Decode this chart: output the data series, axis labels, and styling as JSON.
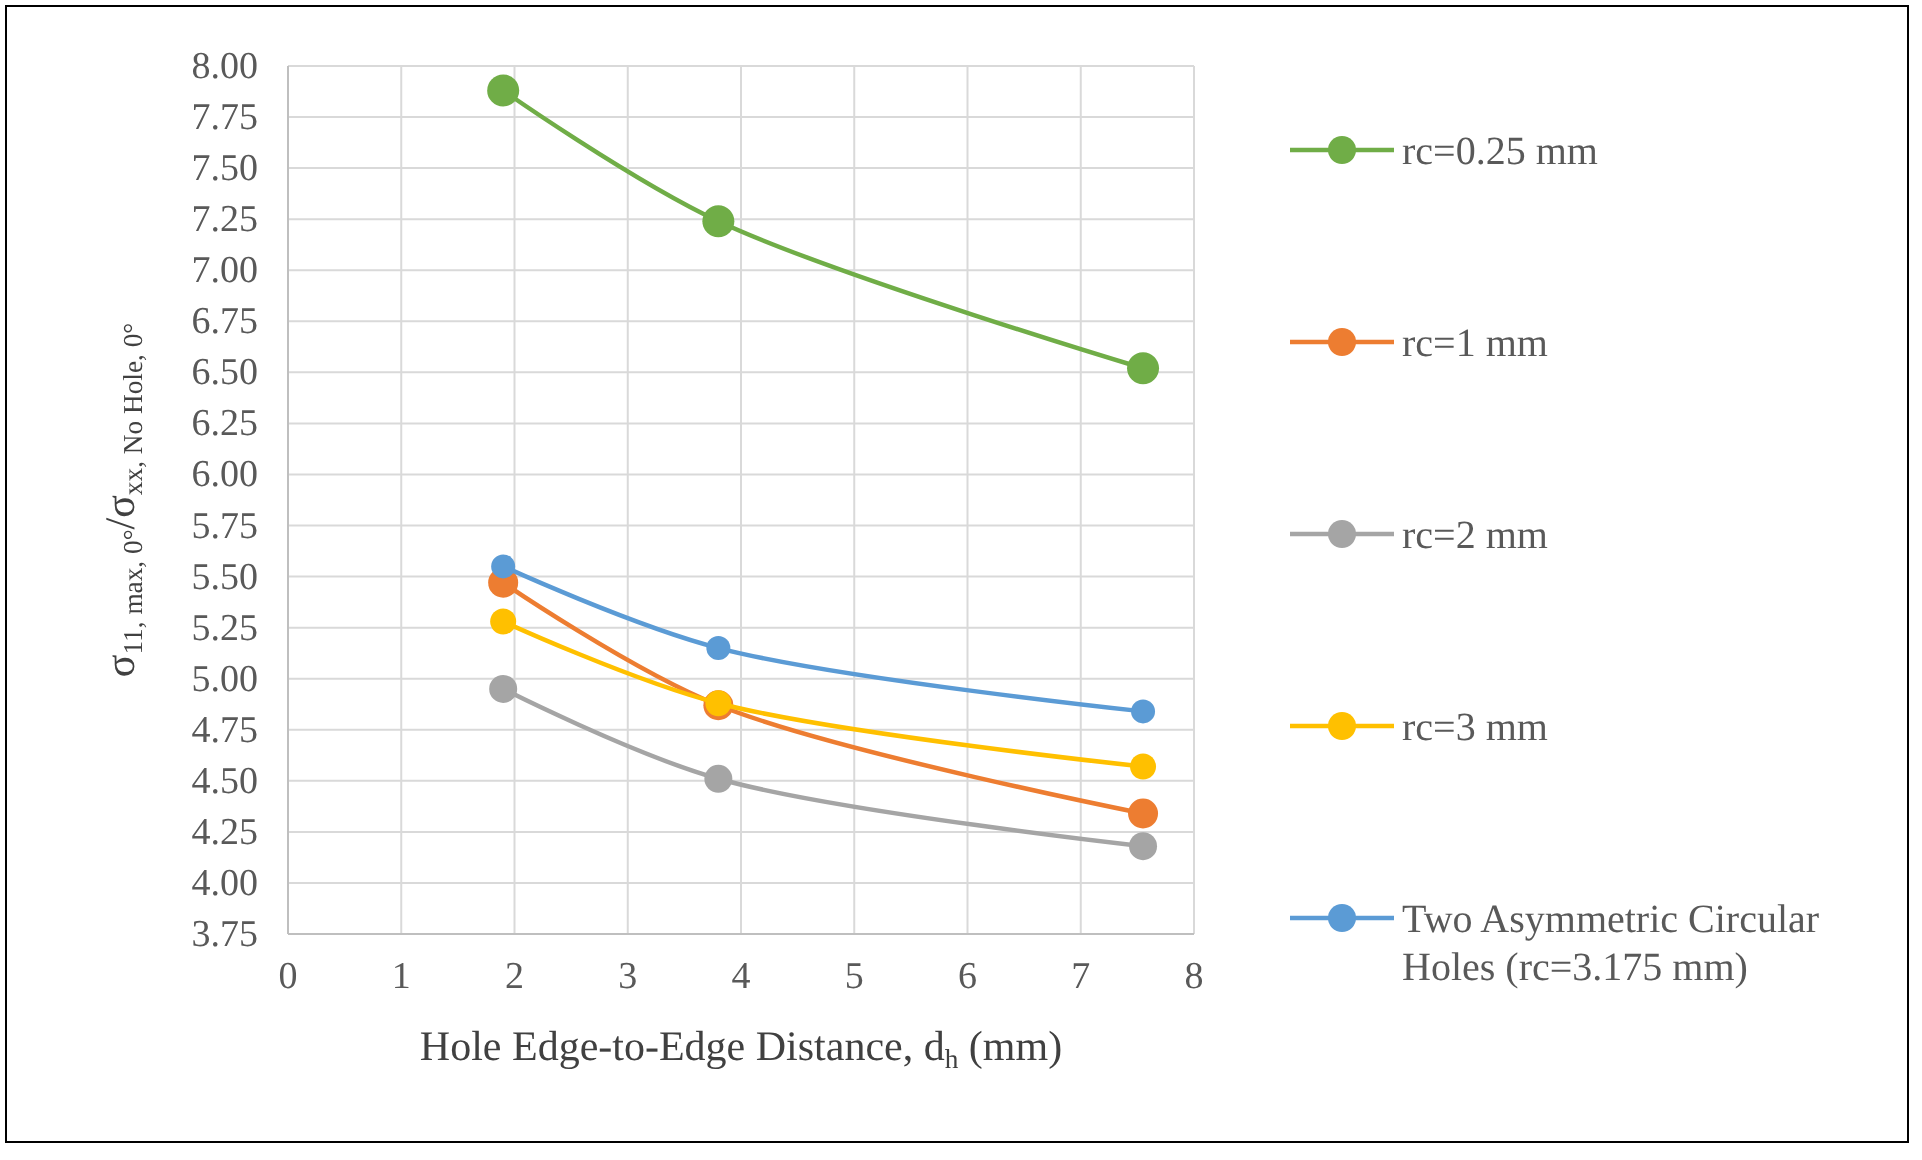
{
  "chart_data": {
    "type": "line",
    "xlabel": "Hole Edge-to-Edge Distance, d$_{h}$ (mm)",
    "ylabel": "σ$_{11, max, 0°}$/σ$_{xx, No Hole, 0°}$",
    "x": [
      1.9,
      3.8,
      7.55
    ],
    "series": [
      {
        "name": "rc=0.25 mm",
        "color": "#70ad47",
        "values": [
          7.88,
          7.24,
          6.52
        ]
      },
      {
        "name": "rc=1 mm",
        "color": "#ed7d31",
        "values": [
          5.47,
          4.87,
          4.34
        ]
      },
      {
        "name": "rc=2 mm",
        "color": "#a5a5a5",
        "values": [
          4.95,
          4.51,
          4.18
        ]
      },
      {
        "name": "rc=3 mm",
        "color": "#ffc000",
        "values": [
          5.28,
          4.88,
          4.57
        ]
      },
      {
        "name": "Two Asymmetric Circular Holes (rc=3.175 mm)",
        "color": "#5b9bd5",
        "values": [
          5.55,
          5.15,
          4.84
        ]
      }
    ],
    "xlim": [
      0,
      8
    ],
    "xticks": [
      0,
      1,
      2,
      3,
      4,
      5,
      6,
      7,
      8
    ],
    "ylim": [
      3.75,
      8
    ],
    "yticks": [
      {
        "value": 3.75,
        "label": "3.75"
      },
      {
        "value": 4,
        "label": "4.00"
      },
      {
        "value": 4.25,
        "label": "4.25"
      },
      {
        "value": 4.5,
        "label": "4.50"
      },
      {
        "value": 4.75,
        "label": "4.75"
      },
      {
        "value": 5,
        "label": "5.00"
      },
      {
        "value": 5.25,
        "label": "5.25"
      },
      {
        "value": 5.5,
        "label": "5.50"
      },
      {
        "value": 5.75,
        "label": "5.75"
      },
      {
        "value": 6,
        "label": "6.00"
      },
      {
        "value": 6.25,
        "label": "6.25"
      },
      {
        "value": 6.5,
        "label": "6.50"
      },
      {
        "value": 6.75,
        "label": "6.75"
      },
      {
        "value": 7,
        "label": "7.00"
      },
      {
        "value": 7.25,
        "label": "7.25"
      },
      {
        "value": 7.5,
        "label": "7.50"
      },
      {
        "value": 7.75,
        "label": "7.75"
      },
      {
        "value": 8,
        "label": "8.00"
      }
    ],
    "grid": true,
    "legend": "right",
    "marker": "circle",
    "line_style": "solid"
  }
}
